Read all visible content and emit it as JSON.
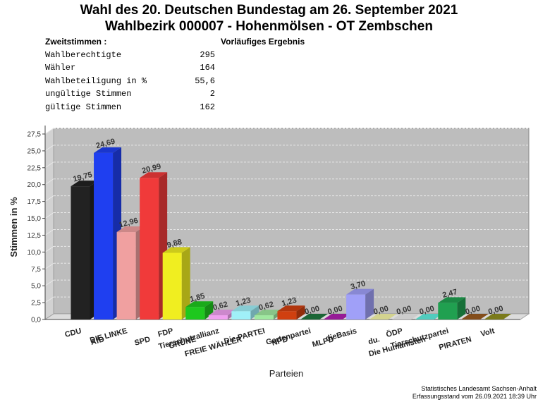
{
  "header": {
    "title_line1": "Wahl des 20. Deutschen Bundestag am 26. September 2021",
    "title_line2": "Wahlbezirk 000007 - Hohenmölsen - OT Zembschen",
    "section_label": "Zweitstimmen :",
    "status_label": "Vorläufiges Ergebnis"
  },
  "stats": [
    {
      "label": "Wahlberechtigte",
      "value": "295"
    },
    {
      "label": "Wähler",
      "value": "164"
    },
    {
      "label": "Wahlbeteiligung in %",
      "value": "55,6"
    },
    {
      "label": "ungültige Stimmen",
      "value": "2"
    },
    {
      "label": "gültige Stimmen",
      "value": "162"
    }
  ],
  "chart_data": {
    "type": "bar",
    "xlabel": "Parteien",
    "ylabel": "Stimmen in %",
    "ylim": [
      0,
      27.5
    ],
    "yticks": [
      "0,0",
      "2,5",
      "5,0",
      "7,5",
      "10,0",
      "12,5",
      "15,0",
      "17,5",
      "20,0",
      "22,5",
      "25,0",
      "27,5"
    ],
    "grid": true,
    "categories": [
      "CDU",
      "AfD",
      "DIE LINKE",
      "SPD",
      "FDP",
      "GRÜNE",
      "Tierschutzallianz",
      "FREIE WÄHLER",
      "Die PARTEI",
      "NPD",
      "Gartenpartei",
      "MLPD",
      "dieBasis",
      "du.",
      "ÖDP",
      "Die Humanisten",
      "Tierschutzpartei",
      "PIRATEN",
      "Volt"
    ],
    "values": [
      19.75,
      24.69,
      12.96,
      20.99,
      9.88,
      1.85,
      0.62,
      1.23,
      0.62,
      1.23,
      0.0,
      0.0,
      3.7,
      0.0,
      0.0,
      0.0,
      2.47,
      0.0,
      0.0
    ],
    "value_labels": [
      "19,75",
      "24,69",
      "12,96",
      "20,99",
      "9,88",
      "1,85",
      "0,62",
      "1,23",
      "0,62",
      "1,23",
      "0,00",
      "0,00",
      "3,70",
      "0,00",
      "0,00",
      "0,00",
      "2,47",
      "0,00",
      "0,00"
    ],
    "colors": [
      "#222222",
      "#1f3ff0",
      "#f0a0a0",
      "#f03a3a",
      "#f0ee20",
      "#1ec81e",
      "#f0a0f0",
      "#a0f0f8",
      "#a0e8a0",
      "#d04010",
      "#207840",
      "#b020b0",
      "#a0a0f8",
      "#f8f8a8",
      "#f0f0f0",
      "#60f0e0",
      "#20a050",
      "#9a5a20",
      "#909020"
    ]
  },
  "footer": {
    "line1": "Statistisches Landesamt Sachsen-Anhalt",
    "line2": "Erfassungsstand vom 26.09.2021 18:39 Uhr"
  }
}
